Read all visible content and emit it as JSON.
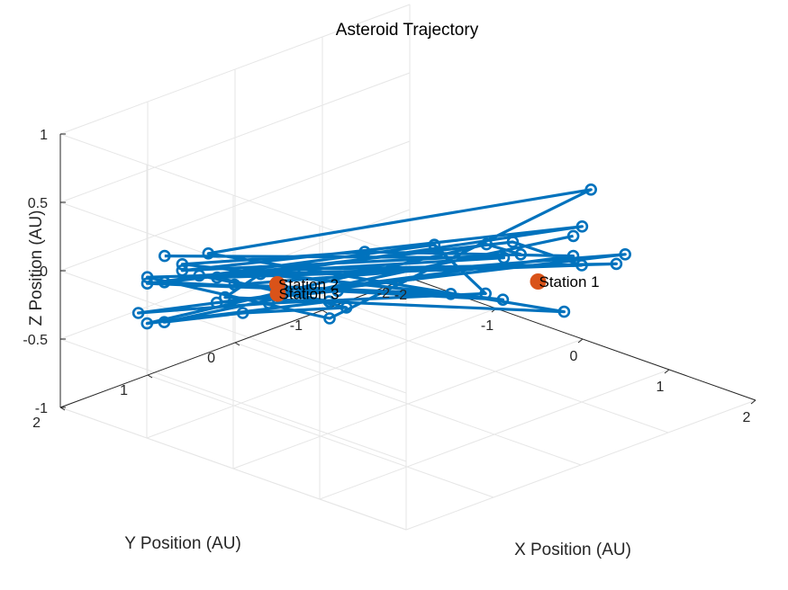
{
  "chart_data": {
    "type": "scatter3d",
    "title": "Asteroid Trajectory",
    "xlabel": "X Position (AU)",
    "ylabel": "Y Position (AU)",
    "zlabel": "Z Position (AU)",
    "xlim": [
      -2,
      2
    ],
    "ylim": [
      -2,
      2
    ],
    "zlim": [
      -1,
      1
    ],
    "xticks": [
      -2,
      -1,
      0,
      1,
      2
    ],
    "yticks": [
      -2,
      -1,
      0,
      1,
      2
    ],
    "zticks": [
      -1,
      -0.5,
      0,
      0.5,
      1
    ],
    "xtick_labels": [
      "-2",
      "-1",
      "0",
      "1",
      "2"
    ],
    "ytick_labels": [
      "-2",
      "-1",
      "0",
      "1",
      "2"
    ],
    "ztick_labels": [
      "-1",
      "-0.5",
      "0",
      "0.5",
      "1"
    ],
    "grid": true,
    "colors": {
      "trajectory": "#0072BD",
      "stations": "#D95319",
      "grid": "#e6e6e6",
      "axis": "#262626"
    },
    "trajectory": {
      "x": [
        -1.4,
        0.2,
        -1.1,
        0.3,
        -1.3,
        0.1,
        0.9,
        -1.5,
        0.6,
        -0.2,
        1.4,
        -1.6,
        -0.3,
        0.5,
        -1.4,
        1.2,
        -0.6,
        -1.2,
        0.9,
        -1.4,
        1.3,
        -1.0,
        0.4,
        -1.5,
        -0.2,
        1.1,
        -0.9,
        -1.3,
        0.8,
        -0.5,
        -1.6,
        1.3,
        -1.2,
        0.0,
        1.0,
        -1.4,
        0.5,
        -0.9,
        -1.0,
        0.7
      ],
      "y": [
        1.4,
        -0.9,
        1.3,
        1.2,
        1.7,
        -0.8,
        -0.4,
        1.1,
        -1.4,
        1.1,
        -1.0,
        1.4,
        0.6,
        -1.6,
        0.9,
        -0.6,
        1.5,
        0.5,
        0.4,
        0.6,
        -1.2,
        1.2,
        1.2,
        1.5,
        -0.5,
        0.2,
        0.7,
        1.8,
        -1.1,
        0.0,
        1.0,
        0.2,
        1.6,
        -1.2,
        -1.0,
        0.8,
        1.2,
        1.0,
        1.8,
        -1.2
      ],
      "z": [
        0.1,
        -0.1,
        0.0,
        0.1,
        -0.3,
        0.0,
        0.2,
        -0.1,
        0.1,
        0.2,
        0.1,
        -0.1,
        -0.3,
        0.3,
        0.0,
        -0.2,
        0.0,
        -0.2,
        0.1,
        -0.3,
        0.1,
        -0.2,
        0.2,
        -0.1,
        0.0,
        0.1,
        -0.3,
        -0.2,
        0.0,
        0.0,
        -0.1,
        0.1,
        0.0,
        -0.1,
        0.0,
        -0.2,
        0.1,
        -0.3,
        -0.2,
        0.1
      ]
    },
    "stations": [
      {
        "name": "Station 1",
        "x": 1.0,
        "y": -0.5,
        "z": 0.0
      },
      {
        "name": "Station 2",
        "x": -0.5,
        "y": 1.0,
        "z": 0.0
      },
      {
        "name": "Station 3",
        "x": -1.0,
        "y": 0.5,
        "z": -0.3
      }
    ]
  }
}
